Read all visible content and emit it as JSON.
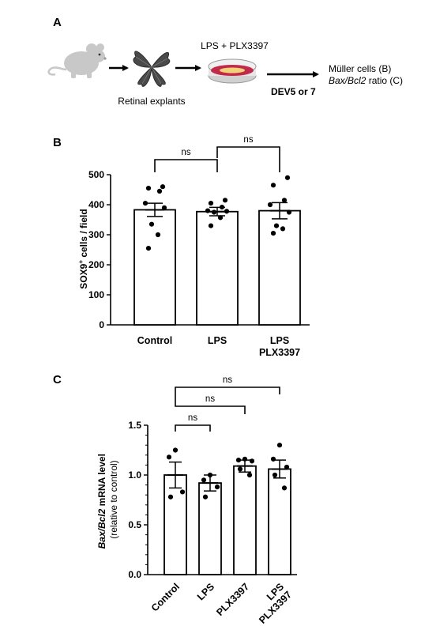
{
  "panels": {
    "a": "A",
    "b": "B",
    "c": "C"
  },
  "schematic": {
    "treatment_label": "LPS + PLX3397",
    "explant_label": "Retinal explants",
    "timepoint_label": "DEV5 or 7",
    "readout_line1": "Müller cells (B)",
    "readout_line2_italic": "Bax/Bcl2",
    "readout_line2_rest": " ratio (C)",
    "icons": [
      "mouse-icon",
      "retina-flatmount-icon",
      "petri-dish-icon",
      "arrow-icon"
    ]
  },
  "colors": {
    "mouse": "#c8c8c8",
    "retina": "#4a4a4a",
    "dish_medium": "#c22a4a",
    "dish_explant": "#f1d27a",
    "bar_fill": "#ffffff",
    "stroke": "#000000"
  },
  "chart_data": [
    {
      "id": "B",
      "type": "bar",
      "categories": [
        "Control",
        "LPS",
        "LPS\nPLX3397"
      ],
      "values": [
        383,
        377,
        380
      ],
      "errors": [
        22,
        14,
        27
      ],
      "points": [
        [
          460,
          455,
          445,
          405,
          390,
          335,
          300,
          255
        ],
        [
          415,
          405,
          392,
          380,
          378,
          375,
          357,
          330
        ],
        [
          490,
          465,
          415,
          400,
          375,
          330,
          320,
          305
        ]
      ],
      "yticks": [
        0,
        100,
        200,
        300,
        400,
        500
      ],
      "ylim": [
        0,
        500
      ],
      "ylabel_main": "SOX9",
      "ylabel_sup": "+",
      "ylabel_rest": " cells / field",
      "comparisons": [
        {
          "from": 0,
          "to": 1,
          "label": "ns"
        },
        {
          "from": 1,
          "to": 2,
          "label": "ns"
        }
      ]
    },
    {
      "id": "C",
      "type": "bar",
      "categories": [
        "Control",
        "LPS",
        "PLX3397",
        "LPS\nPLX3397"
      ],
      "values": [
        1.0,
        0.92,
        1.09,
        1.06
      ],
      "errors": [
        0.13,
        0.08,
        0.06,
        0.09
      ],
      "points": [
        [
          1.25,
          1.18,
          0.83,
          0.78
        ],
        [
          1.0,
          0.95,
          0.88,
          0.78
        ],
        [
          1.16,
          1.15,
          1.14,
          1.06,
          1.0
        ],
        [
          1.3,
          1.16,
          1.08,
          1.0,
          0.87
        ]
      ],
      "yticks": [
        0.0,
        0.5,
        1.0,
        1.5
      ],
      "ytick_labels": [
        "0.0",
        "0.5",
        "1.0",
        "1.5"
      ],
      "ylim": [
        0,
        1.5
      ],
      "ylabel_italic1": "Bax/Bcl2",
      "ylabel_rest": " mRNA level",
      "ylabel_sub": "(relative to control)",
      "comparisons": [
        {
          "from": 0,
          "to": 3,
          "label": "ns"
        },
        {
          "from": 0,
          "to": 2,
          "label": "ns"
        },
        {
          "from": 0,
          "to": 1,
          "label": "ns"
        }
      ]
    }
  ]
}
